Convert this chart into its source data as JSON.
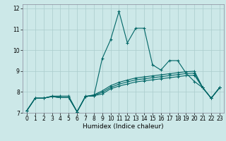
{
  "title": "",
  "xlabel": "Humidex (Indice chaleur)",
  "bg_color": "#cce8e8",
  "grid_color": "#aacccc",
  "line_color": "#006666",
  "xlim": [
    -0.5,
    23.5
  ],
  "ylim": [
    7,
    12.2
  ],
  "yticks": [
    7,
    8,
    9,
    10,
    11,
    12
  ],
  "xticks": [
    0,
    1,
    2,
    3,
    4,
    5,
    6,
    7,
    8,
    9,
    10,
    11,
    12,
    13,
    14,
    15,
    16,
    17,
    18,
    19,
    20,
    21,
    22,
    23
  ],
  "s1_x": [
    0,
    1,
    2,
    3,
    4,
    5,
    6,
    7,
    8,
    9,
    10,
    11,
    12,
    13,
    14,
    15,
    16,
    17,
    18,
    19,
    20,
    21,
    22,
    23
  ],
  "s1_y": [
    7.1,
    7.7,
    7.7,
    7.8,
    7.8,
    7.8,
    7.05,
    7.8,
    7.8,
    9.6,
    10.5,
    11.85,
    10.35,
    11.05,
    11.05,
    9.3,
    9.05,
    9.5,
    9.5,
    8.9,
    8.5,
    8.2,
    7.7,
    8.2
  ],
  "s2_x": [
    0,
    1,
    2,
    3,
    4,
    5,
    6,
    7,
    8,
    9,
    10,
    11,
    12,
    13,
    14,
    15,
    16,
    17,
    18,
    19,
    20,
    21,
    22,
    23
  ],
  "s2_y": [
    7.1,
    7.7,
    7.7,
    7.78,
    7.73,
    7.73,
    7.05,
    7.78,
    7.82,
    7.9,
    8.15,
    8.28,
    8.38,
    8.48,
    8.53,
    8.58,
    8.63,
    8.68,
    8.73,
    8.78,
    8.8,
    8.2,
    7.7,
    8.2
  ],
  "s3_x": [
    0,
    1,
    2,
    3,
    4,
    5,
    6,
    7,
    8,
    9,
    10,
    11,
    12,
    13,
    14,
    15,
    16,
    17,
    18,
    19,
    20,
    21,
    22,
    23
  ],
  "s3_y": [
    7.1,
    7.7,
    7.7,
    7.78,
    7.73,
    7.73,
    7.05,
    7.78,
    7.84,
    7.98,
    8.22,
    8.37,
    8.48,
    8.58,
    8.63,
    8.68,
    8.73,
    8.78,
    8.83,
    8.88,
    8.9,
    8.2,
    7.7,
    8.2
  ],
  "s4_x": [
    0,
    1,
    2,
    3,
    4,
    5,
    6,
    7,
    8,
    9,
    10,
    11,
    12,
    13,
    14,
    15,
    16,
    17,
    18,
    19,
    20,
    21,
    22,
    23
  ],
  "s4_y": [
    7.1,
    7.7,
    7.7,
    7.78,
    7.73,
    7.73,
    7.05,
    7.78,
    7.86,
    8.05,
    8.3,
    8.46,
    8.57,
    8.67,
    8.72,
    8.77,
    8.82,
    8.87,
    8.92,
    8.97,
    8.99,
    8.2,
    7.7,
    8.2
  ],
  "tick_fontsize": 5.5,
  "xlabel_fontsize": 6.5
}
